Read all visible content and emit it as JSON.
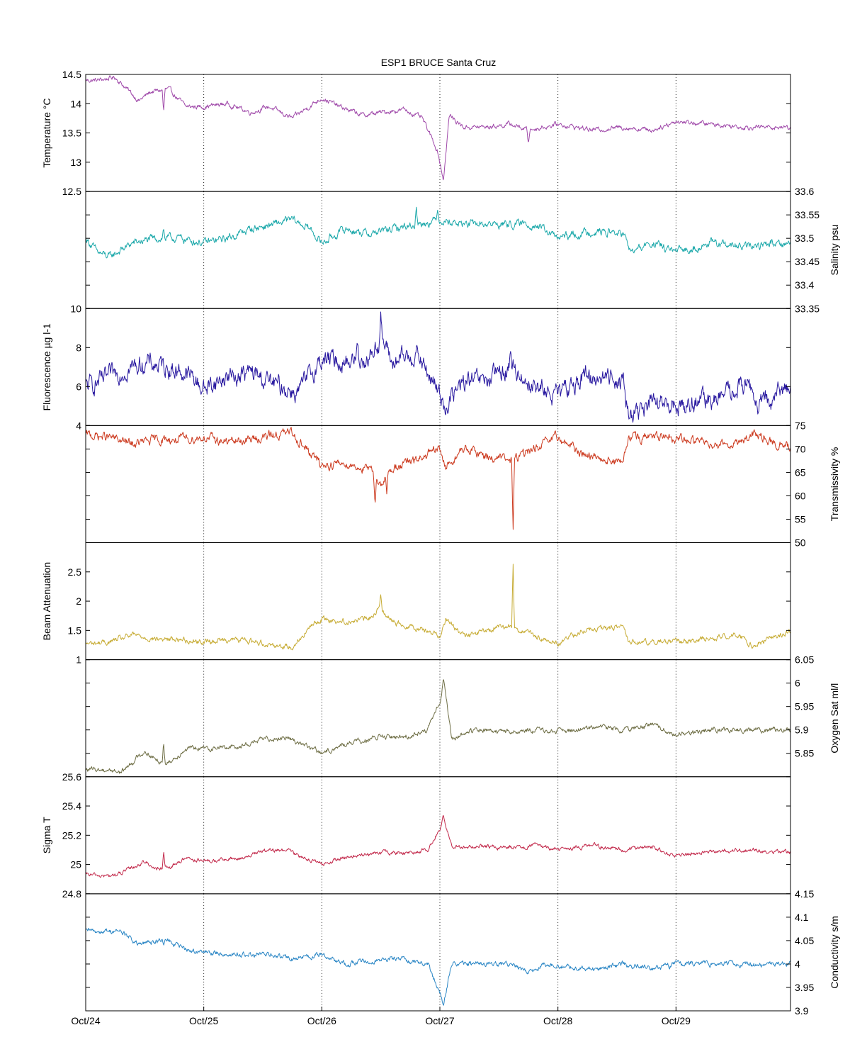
{
  "chart_data": {
    "type": "line",
    "title": "ESP1 BRUCE Santa Cruz",
    "x_tick_labels": [
      "Oct/24",
      "Oct/25",
      "Oct/26",
      "Oct/27",
      "Oct/28",
      "Oct/29"
    ],
    "x_ticks_days": [
      0,
      1,
      2,
      3,
      4,
      5
    ],
    "xlim_days": [
      0,
      5.97
    ],
    "x_grid": "dotted vertical lines at each day",
    "panels": [
      {
        "name": "temperature",
        "ylabel": "Temperature °C",
        "axis_side": "left",
        "ylim": [
          12.5,
          14.5
        ],
        "yticks": [
          "12.5",
          "13",
          "13.5",
          "14",
          "14.5"
        ],
        "tick_values": [
          12.5,
          13,
          13.5,
          14,
          14.5
        ],
        "color": "#a04aaa",
        "noise": 0.03,
        "series": {
          "x": [
            0,
            0.1,
            0.25,
            0.3,
            0.45,
            0.55,
            0.7,
            0.85,
            1.0,
            1.2,
            1.4,
            1.55,
            1.75,
            2.0,
            2.15,
            2.35,
            2.5,
            2.7,
            2.85,
            2.98,
            3.03,
            3.08,
            3.2,
            3.4,
            3.6,
            3.75,
            4.0,
            4.3,
            4.55,
            4.8,
            5.0,
            5.3,
            5.6,
            5.97
          ],
          "y": [
            14.4,
            14.4,
            14.45,
            14.35,
            14.05,
            14.2,
            14.25,
            13.95,
            13.95,
            14.0,
            13.85,
            13.95,
            13.75,
            14.1,
            13.95,
            13.8,
            13.85,
            13.9,
            13.75,
            13.2,
            12.7,
            13.8,
            13.6,
            13.6,
            13.65,
            13.55,
            13.65,
            13.55,
            13.6,
            13.55,
            13.7,
            13.65,
            13.6,
            13.6
          ],
          "spikes": [
            {
              "x": 0.66,
              "y": 13.85
            },
            {
              "x": 3.75,
              "y": 13.3
            }
          ]
        }
      },
      {
        "name": "salinity",
        "ylabel": "Salinity psu",
        "axis_side": "right",
        "ylim": [
          33.35,
          33.6
        ],
        "yticks": [
          "33.35",
          "33.4",
          "33.45",
          "33.5",
          "33.55",
          "33.6"
        ],
        "tick_values": [
          33.35,
          33.4,
          33.45,
          33.5,
          33.55,
          33.6
        ],
        "color": "#1ea9ab",
        "noise": 0.006,
        "series": {
          "x": [
            0,
            0.1,
            0.2,
            0.4,
            0.6,
            0.8,
            1.0,
            1.2,
            1.4,
            1.6,
            1.75,
            1.9,
            2.0,
            2.2,
            2.4,
            2.6,
            2.8,
            3.0,
            3.2,
            3.4,
            3.6,
            3.8,
            4.0,
            4.3,
            4.55,
            4.62,
            4.8,
            5.0,
            5.3,
            5.6,
            5.8,
            5.97
          ],
          "y": [
            33.5,
            33.47,
            33.46,
            33.49,
            33.5,
            33.5,
            33.49,
            33.5,
            33.52,
            33.53,
            33.54,
            33.52,
            33.49,
            33.52,
            33.51,
            33.52,
            33.53,
            33.54,
            33.53,
            33.53,
            33.53,
            33.53,
            33.5,
            33.515,
            33.51,
            33.47,
            33.49,
            33.47,
            33.49,
            33.48,
            33.49,
            33.49
          ],
          "spikes": [
            {
              "x": 0.66,
              "y": 33.52
            },
            {
              "x": 2.8,
              "y": 33.57
            },
            {
              "x": 2.98,
              "y": 33.57
            }
          ]
        }
      },
      {
        "name": "fluorescence",
        "ylabel": "Fluorescence µg l-1",
        "axis_side": "left",
        "ylim": [
          4,
          10
        ],
        "yticks": [
          "4",
          "6",
          "8",
          "10"
        ],
        "tick_values": [
          4,
          6,
          8,
          10
        ],
        "color": "#2a1aa0",
        "noise": 0.35,
        "series": {
          "x": [
            0,
            0.15,
            0.3,
            0.5,
            0.7,
            0.9,
            1.0,
            1.2,
            1.4,
            1.6,
            1.8,
            2.0,
            2.2,
            2.4,
            2.5,
            2.6,
            2.8,
            3.0,
            3.05,
            3.2,
            3.4,
            3.6,
            3.8,
            4.0,
            4.2,
            4.4,
            4.55,
            4.6,
            4.8,
            5.0,
            5.2,
            5.4,
            5.6,
            5.7,
            5.8,
            5.97
          ],
          "y": [
            6.0,
            6.3,
            6.8,
            7.2,
            7.0,
            6.5,
            5.9,
            6.5,
            6.7,
            6.1,
            5.7,
            7.4,
            7.3,
            7.5,
            8.5,
            7.2,
            7.7,
            5.6,
            5.0,
            6.2,
            6.3,
            7.0,
            6.0,
            5.5,
            6.5,
            6.5,
            6.4,
            4.5,
            5.1,
            5.0,
            5.2,
            5.5,
            6.2,
            5.0,
            5.3,
            6.1
          ],
          "spikes": [
            {
              "x": 2.5,
              "y": 9.9
            },
            {
              "x": 3.6,
              "y": 8.1
            },
            {
              "x": 2.3,
              "y": 8.2
            }
          ]
        }
      },
      {
        "name": "transmissivity",
        "ylabel": "Transmissivity %",
        "axis_side": "right",
        "ylim": [
          50,
          75
        ],
        "yticks": [
          "50",
          "55",
          "60",
          "65",
          "70",
          "75"
        ],
        "tick_values": [
          50,
          55,
          60,
          65,
          70,
          75
        ],
        "color": "#cc3a1f",
        "noise": 0.7,
        "series": {
          "x": [
            0,
            0.2,
            0.4,
            0.6,
            0.8,
            1.0,
            1.2,
            1.4,
            1.6,
            1.75,
            1.9,
            2.0,
            2.2,
            2.4,
            2.5,
            2.6,
            2.8,
            3.0,
            3.05,
            3.2,
            3.4,
            3.6,
            3.8,
            4.0,
            4.2,
            4.4,
            4.55,
            4.6,
            4.8,
            5.0,
            5.3,
            5.5,
            5.65,
            5.8,
            5.97
          ],
          "y": [
            73,
            72.5,
            71,
            72,
            72,
            72.5,
            71.5,
            72,
            73,
            73.5,
            69,
            66.5,
            67,
            65.5,
            62.5,
            66,
            67.5,
            70,
            66,
            70,
            68.5,
            67.5,
            70,
            72.5,
            69,
            68,
            67,
            72.5,
            72.5,
            72,
            71.5,
            71,
            73,
            71.5,
            70.5
          ],
          "spikes": [
            {
              "x": 3.62,
              "y": 51.8
            },
            {
              "x": 2.45,
              "y": 59
            },
            {
              "x": 2.55,
              "y": 60
            }
          ]
        }
      },
      {
        "name": "beam_attenuation",
        "ylabel": "Beam Attenuation",
        "axis_side": "left",
        "ylim": [
          1,
          3
        ],
        "yticks": [
          "1",
          "1.5",
          "2",
          "2.5"
        ],
        "tick_values": [
          1,
          1.5,
          2,
          2.5
        ],
        "color": "#c7ac35",
        "noise": 0.035,
        "series": {
          "x": [
            0,
            0.2,
            0.4,
            0.6,
            0.8,
            1.0,
            1.2,
            1.4,
            1.6,
            1.75,
            1.9,
            2.0,
            2.2,
            2.4,
            2.5,
            2.6,
            2.8,
            3.0,
            3.05,
            3.2,
            3.4,
            3.6,
            3.8,
            4.0,
            4.2,
            4.4,
            4.55,
            4.6,
            4.8,
            5.0,
            5.3,
            5.5,
            5.65,
            5.8,
            5.97
          ],
          "y": [
            1.27,
            1.3,
            1.42,
            1.35,
            1.35,
            1.3,
            1.35,
            1.32,
            1.25,
            1.22,
            1.55,
            1.7,
            1.65,
            1.7,
            1.9,
            1.65,
            1.55,
            1.42,
            1.7,
            1.4,
            1.5,
            1.58,
            1.4,
            1.28,
            1.5,
            1.52,
            1.58,
            1.3,
            1.3,
            1.32,
            1.35,
            1.45,
            1.25,
            1.35,
            1.48
          ],
          "spikes": [
            {
              "x": 3.62,
              "y": 2.65
            },
            {
              "x": 2.5,
              "y": 2.1
            }
          ]
        }
      },
      {
        "name": "oxygen_saturation",
        "ylabel": "Oxygen Sat ml/l",
        "axis_side": "right",
        "ylim": [
          5.8,
          6.05
        ],
        "yticks": [
          "5.85",
          "5.9",
          "5.95",
          "6",
          "6.05"
        ],
        "tick_values": [
          5.85,
          5.9,
          5.95,
          6,
          6.05
        ],
        "color": "#6e6e45",
        "noise": 0.004,
        "series": {
          "x": [
            0,
            0.2,
            0.3,
            0.5,
            0.6,
            0.7,
            0.85,
            1.0,
            1.3,
            1.5,
            1.7,
            2.0,
            2.2,
            2.5,
            2.7,
            2.9,
            3.0,
            3.03,
            3.1,
            3.3,
            3.6,
            3.8,
            4.0,
            4.3,
            4.55,
            4.8,
            5.0,
            5.3,
            5.6,
            5.97
          ],
          "y": [
            5.815,
            5.815,
            5.81,
            5.855,
            5.835,
            5.83,
            5.86,
            5.86,
            5.865,
            5.88,
            5.885,
            5.85,
            5.87,
            5.885,
            5.885,
            5.9,
            5.96,
            6.01,
            5.88,
            5.9,
            5.895,
            5.9,
            5.895,
            5.905,
            5.9,
            5.91,
            5.89,
            5.9,
            5.9,
            5.9
          ],
          "spikes": [
            {
              "x": 0.66,
              "y": 5.875
            },
            {
              "x": 3.03,
              "y": 6.015
            }
          ]
        }
      },
      {
        "name": "sigma_t",
        "ylabel": "Sigma T",
        "axis_side": "left",
        "ylim": [
          24.8,
          25.6
        ],
        "yticks": [
          "24.8",
          "25",
          "25.2",
          "25.4",
          "25.6"
        ],
        "tick_values": [
          24.8,
          25,
          25.2,
          25.4,
          25.6
        ],
        "color": "#c2284a",
        "noise": 0.01,
        "series": {
          "x": [
            0,
            0.2,
            0.3,
            0.5,
            0.6,
            0.7,
            0.85,
            1.0,
            1.3,
            1.5,
            1.7,
            2.0,
            2.2,
            2.5,
            2.7,
            2.9,
            3.0,
            3.03,
            3.1,
            3.3,
            3.6,
            3.8,
            4.0,
            4.3,
            4.55,
            4.8,
            5.0,
            5.3,
            5.6,
            5.97
          ],
          "y": [
            24.93,
            24.92,
            24.94,
            25.02,
            24.97,
            24.97,
            25.05,
            25.02,
            25.04,
            25.09,
            25.1,
            25.0,
            25.05,
            25.08,
            25.08,
            25.1,
            25.25,
            25.32,
            25.12,
            25.12,
            25.12,
            25.13,
            25.1,
            25.13,
            25.1,
            25.12,
            25.06,
            25.09,
            25.1,
            25.08
          ],
          "spikes": [
            {
              "x": 0.66,
              "y": 25.08
            },
            {
              "x": 3.03,
              "y": 25.34
            }
          ]
        }
      },
      {
        "name": "conductivity",
        "ylabel": "Conductivity s/m",
        "axis_side": "right",
        "ylim": [
          3.9,
          4.15
        ],
        "yticks": [
          "3.9",
          "3.95",
          "4",
          "4.05",
          "4.1",
          "4.15"
        ],
        "tick_values": [
          3.9,
          3.95,
          4,
          4.05,
          4.1,
          4.15
        ],
        "color": "#2a86c5",
        "noise": 0.004,
        "series": {
          "x": [
            0,
            0.2,
            0.3,
            0.45,
            0.6,
            0.7,
            0.85,
            1.0,
            1.3,
            1.55,
            1.75,
            2.0,
            2.2,
            2.5,
            2.7,
            2.9,
            2.98,
            3.03,
            3.1,
            3.3,
            3.6,
            3.75,
            3.9,
            4.3,
            4.55,
            4.8,
            5.0,
            5.3,
            5.6,
            5.97
          ],
          "y": [
            4.07,
            4.07,
            4.07,
            4.04,
            4.05,
            4.05,
            4.03,
            4.025,
            4.02,
            4.02,
            4.01,
            4.02,
            4.0,
            4.01,
            4.01,
            4.0,
            3.95,
            3.92,
            4.0,
            4.0,
            4.0,
            3.98,
            4.0,
            3.99,
            4.0,
            3.99,
            4.0,
            4.0,
            4.0,
            4.0
          ],
          "spikes": [
            {
              "x": 0.66,
              "y": 4.035
            },
            {
              "x": 3.03,
              "y": 3.915
            }
          ]
        }
      }
    ]
  }
}
